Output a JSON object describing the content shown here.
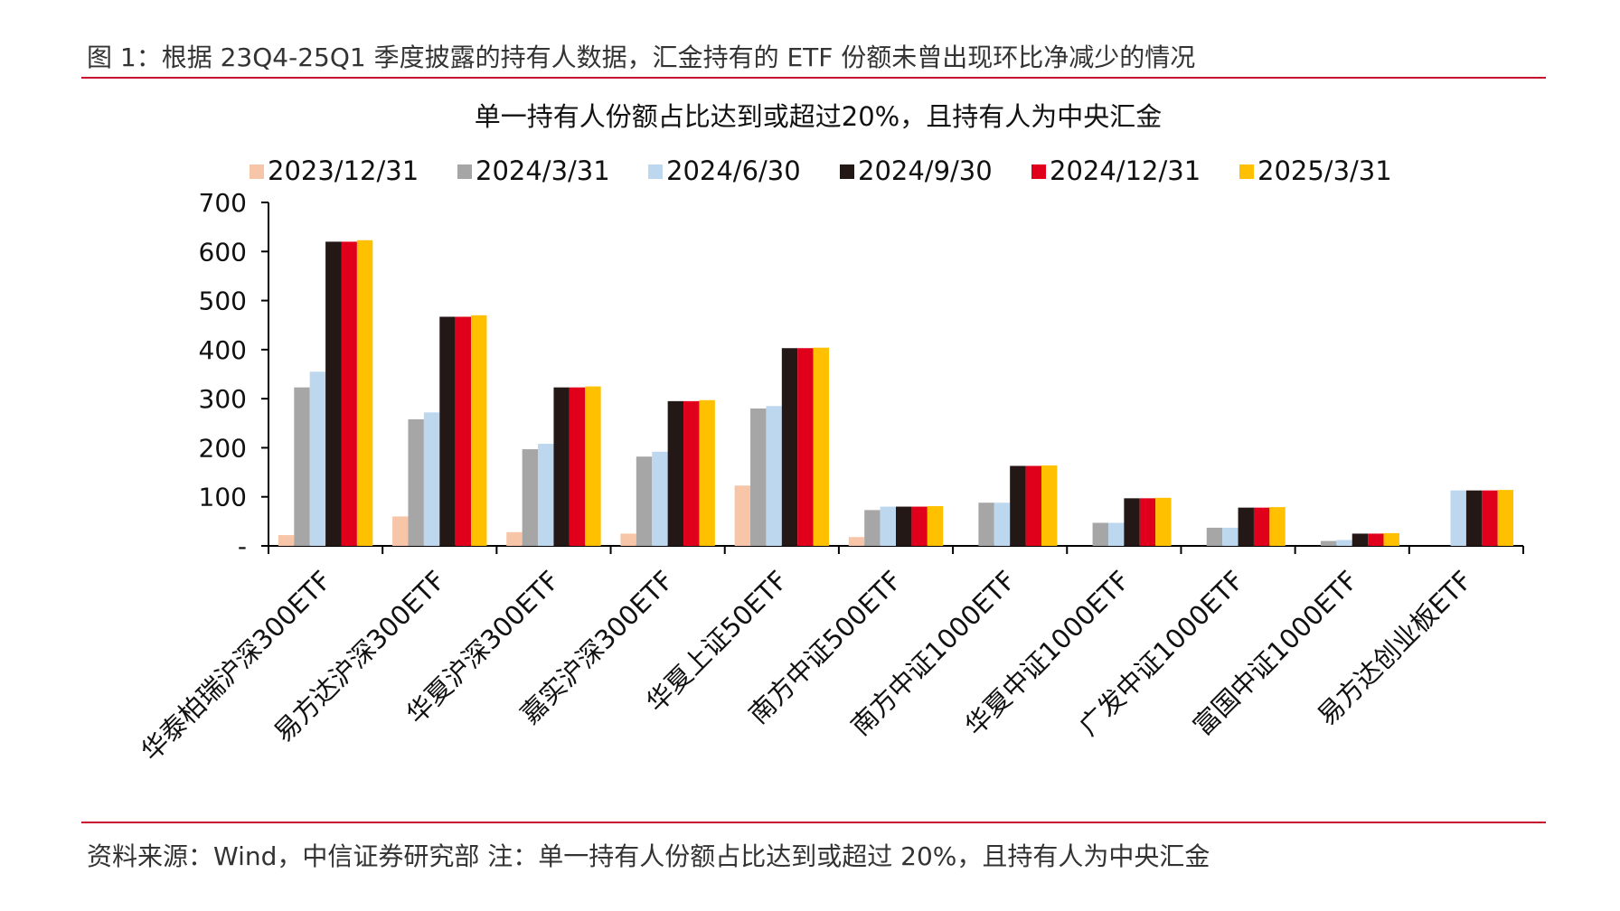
{
  "figure_title": "图 1：根据 23Q4-25Q1 季度披露的持有人数据，汇金持有的 ETF 份额未曾出现环比净减少的情况",
  "footer": "资料来源：Wind，中信证券研究部 注：单一持有人份额占比达到或超过 20%，且持有人为中央汇金",
  "chart_data": {
    "type": "bar",
    "title": "单一持有人份额占比达到或超过20%，且持有人为中央汇金",
    "xlabel": "",
    "ylabel": "",
    "ylim": [
      0,
      700
    ],
    "yticks": [
      0,
      100,
      200,
      300,
      400,
      500,
      600,
      700
    ],
    "yticklabels": [
      "-",
      "100",
      "200",
      "300",
      "400",
      "500",
      "600",
      "700"
    ],
    "legend_position": "top",
    "grid": false,
    "categories": [
      "华泰柏瑞沪深300ETF",
      "易方达沪深300ETF",
      "华夏沪深300ETF",
      "嘉实沪深300ETF",
      "华夏上证50ETF",
      "南方中证500ETF",
      "南方中证1000ETF",
      "华夏中证1000ETF",
      "广发中证1000ETF",
      "富国中证1000ETF",
      "易方达创业板ETF"
    ],
    "series": [
      {
        "name": "2023/12/31",
        "color": "#f7c6a8",
        "values": [
          22,
          60,
          28,
          25,
          123,
          18,
          0,
          0,
          0,
          0,
          0
        ]
      },
      {
        "name": "2024/3/31",
        "color": "#a6a6a6",
        "values": [
          323,
          258,
          197,
          182,
          280,
          73,
          88,
          47,
          37,
          10,
          0
        ]
      },
      {
        "name": "2024/6/30",
        "color": "#bdd7ee",
        "values": [
          355,
          272,
          208,
          192,
          285,
          80,
          88,
          47,
          37,
          12,
          113
        ]
      },
      {
        "name": "2024/9/30",
        "color": "#231815",
        "values": [
          620,
          467,
          323,
          295,
          403,
          80,
          163,
          97,
          78,
          25,
          113
        ]
      },
      {
        "name": "2024/12/31",
        "color": "#e0001b",
        "values": [
          620,
          467,
          323,
          295,
          403,
          80,
          163,
          97,
          78,
          25,
          113
        ]
      },
      {
        "name": "2025/3/31",
        "color": "#ffc000",
        "values": [
          623,
          470,
          325,
          297,
          404,
          81,
          164,
          98,
          79,
          26,
          114
        ]
      }
    ]
  }
}
